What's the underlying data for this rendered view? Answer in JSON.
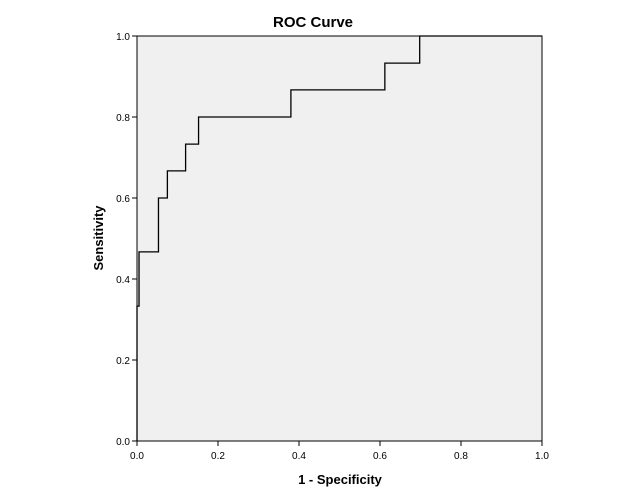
{
  "chart_data": {
    "type": "line",
    "title": "ROC Curve",
    "xlabel": "1 - Specificity",
    "ylabel": "Sensitivity",
    "xlim": [
      0.0,
      1.0
    ],
    "ylim": [
      0.0,
      1.0
    ],
    "xticks": [
      "0.0",
      "0.2",
      "0.4",
      "0.6",
      "0.8",
      "1.0"
    ],
    "yticks": [
      "0.0",
      "0.2",
      "0.4",
      "0.6",
      "0.8",
      "1.0"
    ],
    "grid": false,
    "plot_background": "#f0f0f0",
    "line_color": "#000000",
    "series": [
      {
        "x": [
          0.0,
          0.0,
          0.005,
          0.005,
          0.053,
          0.053,
          0.075,
          0.075,
          0.12,
          0.12,
          0.152,
          0.152,
          0.38,
          0.38,
          0.612,
          0.612,
          0.698,
          0.698,
          1.0
        ],
        "y": [
          0.0,
          0.333,
          0.333,
          0.467,
          0.467,
          0.6,
          0.6,
          0.667,
          0.667,
          0.733,
          0.733,
          0.8,
          0.8,
          0.867,
          0.867,
          0.933,
          0.933,
          1.0,
          1.0
        ]
      }
    ]
  }
}
